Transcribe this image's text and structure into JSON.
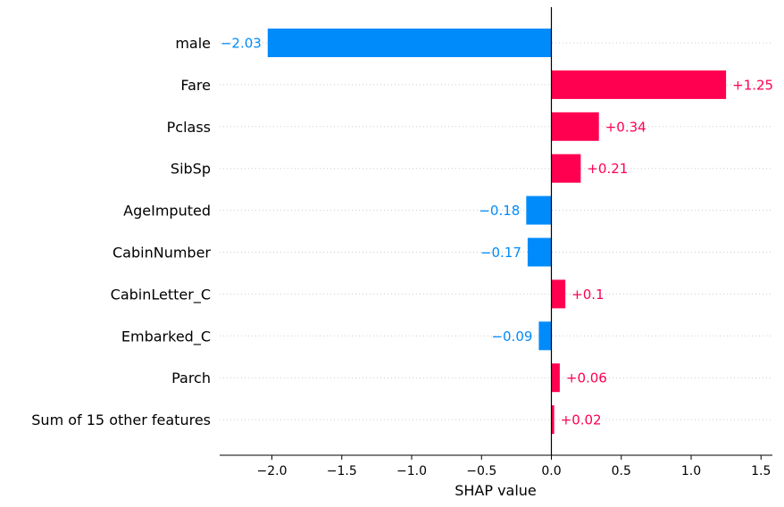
{
  "chart_data": {
    "type": "bar",
    "orientation": "horizontal",
    "xlabel": "SHAP value",
    "xlim": [
      -2.4,
      1.6
    ],
    "xticks": [
      -2.0,
      -1.5,
      -1.0,
      -0.5,
      0.0,
      0.5,
      1.0,
      1.5
    ],
    "xtick_labels": [
      "−2.0",
      "−1.5",
      "−1.0",
      "−0.5",
      "0.0",
      "0.5",
      "1.0",
      "1.5"
    ],
    "grid": "horizontal dotted",
    "zero_line": true,
    "colors": {
      "positive": "#ff0051",
      "negative": "#008bfb"
    },
    "categories": [
      "male",
      "Fare",
      "Pclass",
      "SibSp",
      "AgeImputed",
      "CabinNumber",
      "CabinLetter_C",
      "Embarked_C",
      "Parch",
      "Sum of 15 other features"
    ],
    "values": [
      -2.03,
      1.25,
      0.34,
      0.21,
      -0.18,
      -0.17,
      0.1,
      -0.09,
      0.06,
      0.02
    ],
    "value_labels": [
      "−2.03",
      "+1.25",
      "+0.34",
      "+0.21",
      "−0.18",
      "−0.17",
      "+0.1",
      "−0.09",
      "+0.06",
      "+0.02"
    ]
  }
}
